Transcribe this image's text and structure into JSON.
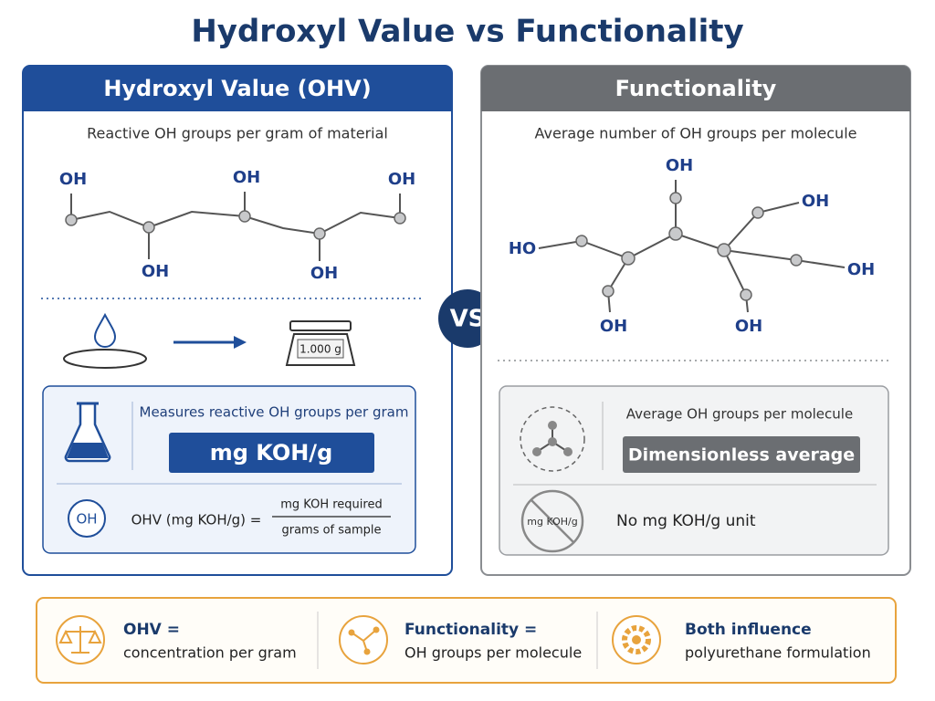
{
  "title": "Hydroxyl Value vs Functionality",
  "left_panel": {
    "header": "Hydroxyl Value (OHV)",
    "subtitle": "Reactive OH groups per gram of material",
    "molecule_labels": [
      "OH",
      "OH",
      "OH",
      "OH",
      "OH"
    ],
    "scale_reading": "1.000 g",
    "definition": "Measures reactive OH groups per gram",
    "unit": "mg KOH/g",
    "formula": {
      "icon": "OH",
      "lhs": "OHV (mg KOH/g) =",
      "numerator": "mg KOH required",
      "denominator": "grams of sample"
    }
  },
  "vs": "VS",
  "right_panel": {
    "header": "Functionality",
    "subtitle": "Average number of OH groups per molecule",
    "molecule_labels": [
      "OH",
      "OH",
      "HO",
      "OH",
      "OH",
      "OH"
    ],
    "definition": "Average OH groups per molecule",
    "unit": "Dimensionless average",
    "no_unit_icon": "mg KOH/g",
    "no_unit": "No mg KOH/g unit"
  },
  "summary": [
    {
      "label": "OHV =",
      "text": "concentration per gram"
    },
    {
      "label": "Functionality =",
      "text": "OH groups per molecule"
    },
    {
      "label": "Both influence",
      "text": "polyurethane formulation"
    }
  ]
}
